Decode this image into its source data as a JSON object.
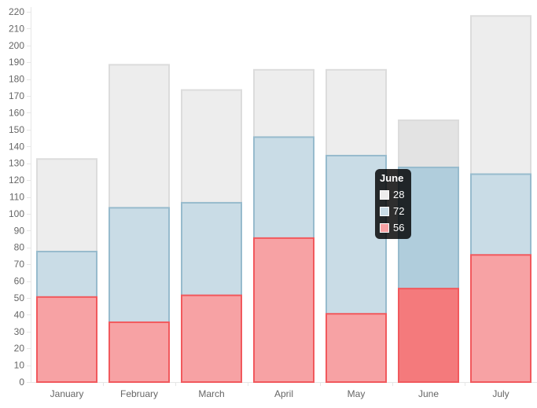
{
  "chart_data": {
    "type": "bar",
    "stacked": false,
    "overlapping": true,
    "categories": [
      "January",
      "February",
      "March",
      "April",
      "May",
      "June",
      "July"
    ],
    "series": [
      {
        "values": [
          133,
          189,
          174,
          186,
          186,
          156,
          218
        ],
        "fill": "#ededed",
        "stroke": "#dcdcdc",
        "highlight_fill": "#e3e3e3"
      },
      {
        "values": [
          78,
          104,
          107,
          146,
          135,
          128,
          124
        ],
        "fill": "#c9dce6",
        "stroke": "#97bbcd",
        "highlight_fill": "#b0cddc"
      },
      {
        "values": [
          51,
          36,
          52,
          86,
          41,
          56,
          76
        ],
        "fill": "#f7a2a4",
        "stroke": "#f1595d",
        "highlight_fill": "#f47a7c"
      }
    ],
    "ylim": [
      0,
      220
    ],
    "ytick_step": 10,
    "yticks": [
      "0",
      "10",
      "20",
      "30",
      "40",
      "50",
      "60",
      "70",
      "80",
      "90",
      "100",
      "110",
      "120",
      "130",
      "140",
      "150",
      "160",
      "170",
      "180",
      "190",
      "200",
      "210",
      "220"
    ],
    "grid": false,
    "highlighted_category": "June"
  },
  "tooltip": {
    "title": "June",
    "rows": [
      {
        "value": "28",
        "color": "#ededed"
      },
      {
        "value": "72",
        "color": "#c9dce6"
      },
      {
        "value": "56",
        "color": "#f7a2a4"
      }
    ]
  }
}
